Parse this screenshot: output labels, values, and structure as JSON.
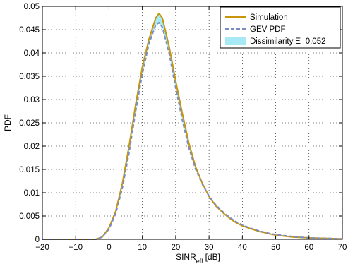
{
  "chart_data": {
    "type": "line",
    "title": "",
    "xlabel": "SINR",
    "xlabel_sub": "eff",
    "xlabel_unit": "[dB]",
    "ylabel": "PDF",
    "xlim": [
      -20,
      70
    ],
    "ylim": [
      0,
      0.05
    ],
    "xticks": [
      -20,
      -10,
      0,
      10,
      20,
      30,
      40,
      50,
      60,
      70
    ],
    "yticks": [
      0,
      0.005,
      0.01,
      0.015,
      0.02,
      0.025,
      0.03,
      0.035,
      0.04,
      0.045,
      0.05
    ],
    "grid": true,
    "legend_position": "top-right",
    "series": [
      {
        "name": "Simulation",
        "style": "solid",
        "color": "#c8960a",
        "x": [
          -20,
          -10,
          -4,
          -2,
          0,
          2,
          4,
          6,
          8,
          10,
          12,
          14,
          15,
          16,
          18,
          20,
          22,
          24,
          26,
          28,
          30,
          32,
          34,
          36,
          38,
          40,
          42,
          45,
          48,
          50,
          55,
          60,
          65,
          70
        ],
        "y": [
          0,
          0,
          0,
          0.0005,
          0.0025,
          0.006,
          0.012,
          0.02,
          0.029,
          0.037,
          0.043,
          0.0475,
          0.0485,
          0.0475,
          0.0415,
          0.034,
          0.027,
          0.0205,
          0.0155,
          0.012,
          0.0092,
          0.0072,
          0.0058,
          0.0046,
          0.0036,
          0.0029,
          0.0024,
          0.0017,
          0.0012,
          0.0009,
          0.0005,
          0.0003,
          0.0002,
          0.0001
        ]
      },
      {
        "name": "GEV PDF",
        "style": "dashed",
        "color": "#7a8cc8",
        "x": [
          -20,
          -10,
          -4,
          -2,
          0,
          2,
          4,
          6,
          8,
          10,
          12,
          14,
          15,
          16,
          18,
          20,
          22,
          24,
          26,
          28,
          30,
          32,
          34,
          36,
          38,
          40,
          42,
          45,
          48,
          50,
          55,
          60,
          65,
          70
        ],
        "y": [
          0,
          0,
          0,
          0.0005,
          0.0022,
          0.0055,
          0.011,
          0.0185,
          0.0275,
          0.0355,
          0.042,
          0.046,
          0.0465,
          0.0455,
          0.04,
          0.0325,
          0.0255,
          0.0195,
          0.015,
          0.0118,
          0.0093,
          0.0074,
          0.006,
          0.0048,
          0.0038,
          0.0031,
          0.0025,
          0.0018,
          0.0013,
          0.001,
          0.0006,
          0.0003,
          0.0002,
          0.0001
        ]
      }
    ],
    "fill_between": {
      "name": "Dissimilarity Ξ=0.052",
      "color": "#a7eaf5"
    },
    "colors": {
      "simulation": "#c8960a",
      "gev": "#7a8cc8",
      "dissimilarity_fill": "#a7eaf5"
    }
  }
}
